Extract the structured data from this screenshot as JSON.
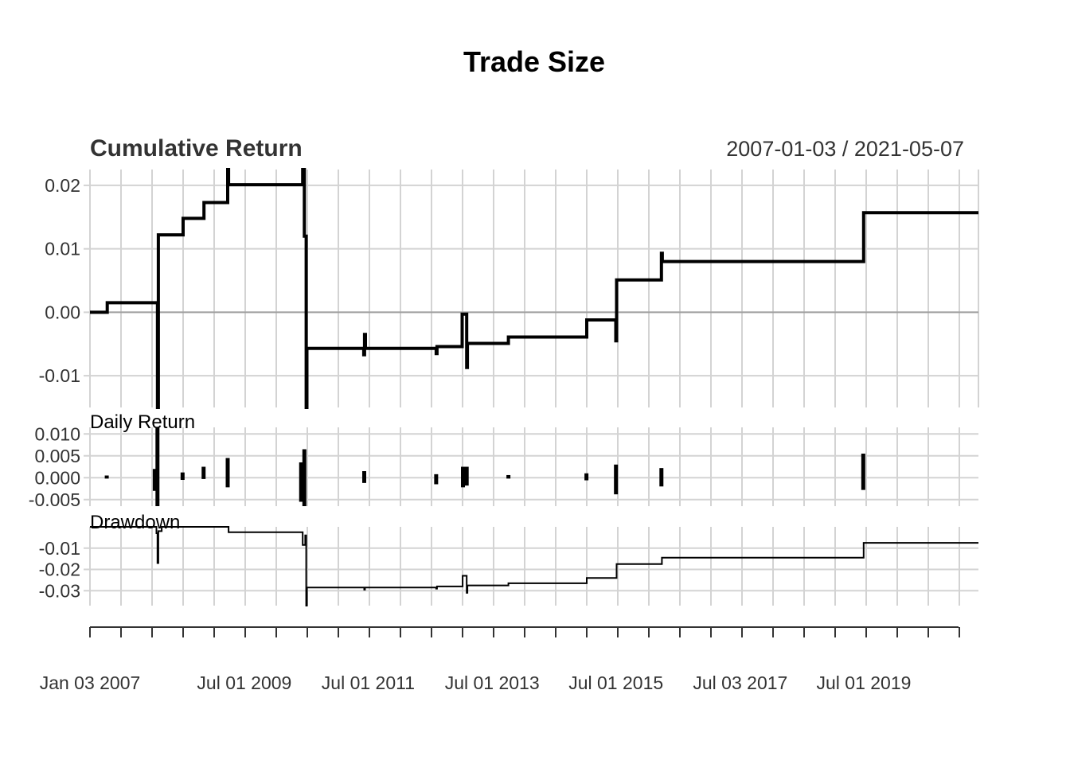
{
  "chart_data": {
    "type": "line",
    "title": "Trade Size",
    "date_range": "2007-01-03 / 2021-05-07",
    "x_start": "2007-01-03",
    "x_end": "2021-05-07",
    "x_tick_labels": [
      {
        "label": "Jan 03 2007",
        "date": "2007-01-03"
      },
      {
        "label": "Jul 01 2009",
        "date": "2009-07-01"
      },
      {
        "label": "Jul 01 2011",
        "date": "2011-07-01"
      },
      {
        "label": "Jul 01 2013",
        "date": "2013-07-01"
      },
      {
        "label": "Jul 01 2015",
        "date": "2015-07-01"
      },
      {
        "label": "Jul 03 2017",
        "date": "2017-07-03"
      },
      {
        "label": "Jul 01 2019",
        "date": "2019-07-01"
      }
    ],
    "panels": [
      {
        "id": "cumulative",
        "title": "Cumulative Return",
        "ylim": [
          -0.015,
          0.0225
        ],
        "y_ticks": [
          {
            "v": 0.02,
            "label": "0.02"
          },
          {
            "v": 0.01,
            "label": "0.01"
          },
          {
            "v": 0.0,
            "label": "0.00"
          },
          {
            "v": -0.01,
            "label": "-0.01"
          }
        ],
        "baseline": 0.0,
        "series": [
          {
            "type": "step",
            "points": [
              [
                "2007-01-03",
                0.0
              ],
              [
                "2007-04-10",
                0.0
              ],
              [
                "2007-04-15",
                0.0015
              ],
              [
                "2008-02-01",
                0.0015
              ],
              [
                "2008-02-05",
                -0.015
              ],
              [
                "2008-02-10",
                0.0122
              ],
              [
                "2008-07-01",
                0.0122
              ],
              [
                "2008-07-05",
                0.0148
              ],
              [
                "2008-11-01",
                0.0148
              ],
              [
                "2008-11-05",
                0.0173
              ],
              [
                "2009-03-20",
                0.0173
              ],
              [
                "2009-03-25",
                0.0225
              ],
              [
                "2009-03-30",
                0.0201
              ],
              [
                "2010-06-01",
                0.0201
              ],
              [
                "2010-06-10",
                0.0225
              ],
              [
                "2010-06-20",
                0.012
              ],
              [
                "2010-07-01",
                -0.015
              ],
              [
                "2010-07-05",
                -0.0057
              ],
              [
                "2011-06-01",
                -0.0057
              ],
              [
                "2011-06-05",
                -0.0067
              ],
              [
                "2011-06-10",
                -0.0035
              ],
              [
                "2011-06-15",
                -0.0057
              ],
              [
                "2012-08-01",
                -0.0057
              ],
              [
                "2012-08-05",
                -0.0065
              ],
              [
                "2012-08-10",
                -0.0054
              ],
              [
                "2013-01-01",
                -0.0054
              ],
              [
                "2013-01-05",
                -0.0003
              ],
              [
                "2013-02-01",
                -0.0087
              ],
              [
                "2013-02-05",
                -0.0049
              ],
              [
                "2013-10-01",
                -0.0049
              ],
              [
                "2013-10-05",
                -0.0039
              ],
              [
                "2015-01-05",
                -0.0039
              ],
              [
                "2015-01-10",
                -0.0012
              ],
              [
                "2015-06-25",
                -0.0012
              ],
              [
                "2015-06-30",
                -0.0045
              ],
              [
                "2015-07-05",
                0.0051
              ],
              [
                "2016-03-20",
                0.0051
              ],
              [
                "2016-03-25",
                0.0093
              ],
              [
                "2016-03-30",
                0.008
              ],
              [
                "2019-06-25",
                0.008
              ],
              [
                "2019-06-30",
                0.0157
              ],
              [
                "2021-05-07",
                0.0157
              ]
            ]
          }
        ]
      },
      {
        "id": "daily",
        "title": "Daily Return",
        "ylim": [
          -0.0065,
          0.0115
        ],
        "y_ticks": [
          {
            "v": 0.01,
            "label": "0.010"
          },
          {
            "v": 0.005,
            "label": "0.005"
          },
          {
            "v": 0.0,
            "label": "0.000"
          },
          {
            "v": -0.005,
            "label": "-0.005"
          }
        ],
        "bars": [
          [
            "2007-04-12",
            0.0005,
            -0.0002
          ],
          [
            "2008-01-20",
            0.002,
            -0.003
          ],
          [
            "2008-02-05",
            0.0115,
            -0.0065
          ],
          [
            "2008-07-02",
            0.0012,
            -0.0005
          ],
          [
            "2008-11-03",
            0.0025,
            -0.0003
          ],
          [
            "2009-03-25",
            0.0045,
            -0.0022
          ],
          [
            "2010-06-01",
            0.0035,
            -0.0055
          ],
          [
            "2010-06-20",
            0.0065,
            -0.0065
          ],
          [
            "2011-06-08",
            0.0015,
            -0.0012
          ],
          [
            "2012-08-05",
            0.0008,
            -0.0015
          ],
          [
            "2013-01-10",
            0.0025,
            -0.0022
          ],
          [
            "2013-02-01",
            0.0025,
            -0.0018
          ],
          [
            "2013-10-05",
            0.0006,
            -0.0002
          ],
          [
            "2015-01-08",
            0.001,
            -0.0006
          ],
          [
            "2015-07-01",
            0.003,
            -0.0038
          ],
          [
            "2016-03-25",
            0.0022,
            -0.002
          ],
          [
            "2019-06-28",
            0.0055,
            -0.0028
          ]
        ]
      },
      {
        "id": "drawdown",
        "title": "Drawdown",
        "ylim": [
          -0.037,
          0.0
        ],
        "y_ticks": [
          {
            "v": -0.01,
            "label": "-0.01"
          },
          {
            "v": -0.02,
            "label": "-0.02"
          },
          {
            "v": -0.03,
            "label": "-0.03"
          }
        ],
        "series": [
          {
            "type": "step",
            "points": [
              [
                "2007-01-03",
                0.0
              ],
              [
                "2008-01-25",
                0.0
              ],
              [
                "2008-01-30",
                -0.003
              ],
              [
                "2008-02-05",
                -0.017
              ],
              [
                "2008-02-10",
                -0.002
              ],
              [
                "2008-03-01",
                0.0
              ],
              [
                "2009-03-25",
                0.0
              ],
              [
                "2009-03-30",
                -0.0025
              ],
              [
                "2010-06-01",
                -0.0025
              ],
              [
                "2010-06-10",
                -0.0085
              ],
              [
                "2010-06-25",
                -0.004
              ],
              [
                "2010-07-01",
                -0.037
              ],
              [
                "2010-07-05",
                -0.0285
              ],
              [
                "2011-06-05",
                -0.0285
              ],
              [
                "2011-06-08",
                -0.0295
              ],
              [
                "2011-06-12",
                -0.0285
              ],
              [
                "2012-08-01",
                -0.0285
              ],
              [
                "2012-08-05",
                -0.029
              ],
              [
                "2012-08-10",
                -0.028
              ],
              [
                "2013-01-01",
                -0.028
              ],
              [
                "2013-01-08",
                -0.023
              ],
              [
                "2013-02-01",
                -0.031
              ],
              [
                "2013-02-05",
                -0.0275
              ],
              [
                "2013-10-01",
                -0.0275
              ],
              [
                "2013-10-05",
                -0.0265
              ],
              [
                "2015-01-05",
                -0.0265
              ],
              [
                "2015-01-10",
                -0.024
              ],
              [
                "2015-06-25",
                -0.024
              ],
              [
                "2015-07-05",
                -0.0175
              ],
              [
                "2016-03-20",
                -0.0175
              ],
              [
                "2016-03-28",
                -0.0145
              ],
              [
                "2019-06-25",
                -0.0145
              ],
              [
                "2019-06-30",
                -0.0075
              ],
              [
                "2021-05-07",
                -0.0075
              ]
            ]
          }
        ]
      }
    ],
    "grid": true
  }
}
